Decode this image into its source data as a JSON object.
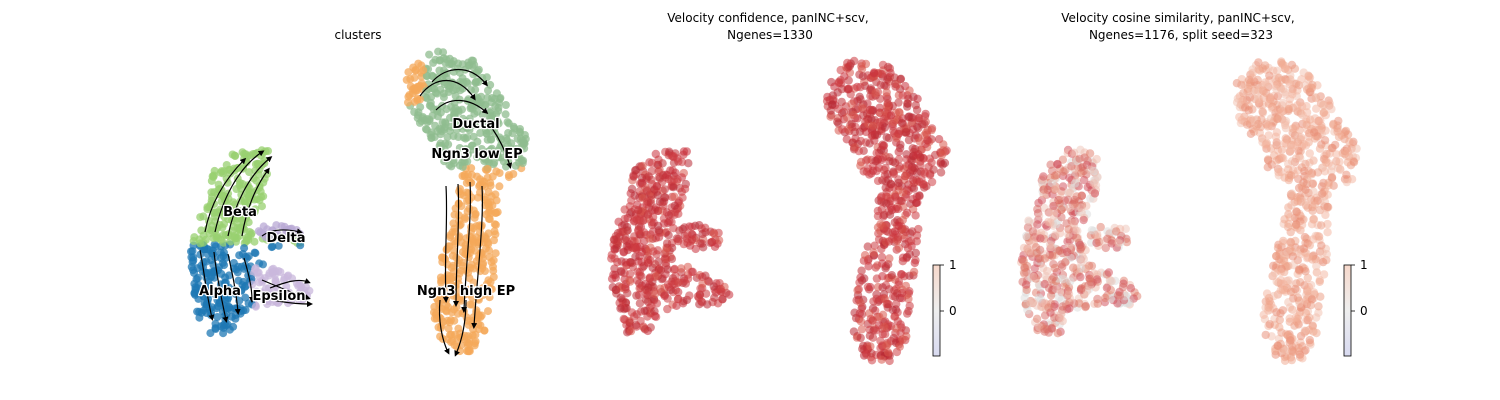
{
  "chart_data": [
    {
      "type": "scatter",
      "title": "clusters",
      "point_kind": "umap-embedding-with-velocity-streamlines",
      "clusters": [
        {
          "name": "Beta",
          "color": "#98d070"
        },
        {
          "name": "Delta",
          "color": "#b8a8d4"
        },
        {
          "name": "Alpha",
          "color": "#1f78b4"
        },
        {
          "name": "Epsilon",
          "color": "#c9b8dc"
        },
        {
          "name": "Ductal",
          "color": "#8fbc8f"
        },
        {
          "name": "Ngn3 low EP",
          "color": "#8fbc8f"
        },
        {
          "name": "Ngn3 high EP",
          "color": "#f4a85a"
        }
      ],
      "axes_visible": false
    },
    {
      "type": "scatter",
      "title_line1": "Velocity confidence, panINC+scv,",
      "title_line2": "Ngenes=1330",
      "colormap": "coolwarm",
      "colorbar": {
        "ticks": [
          "1",
          "0"
        ],
        "range": [
          -1,
          1
        ]
      },
      "axes_visible": false
    },
    {
      "type": "scatter",
      "title_line1": "Velocity cosine similarity, panINC+scv,",
      "title_line2": "Ngenes=1176, split seed=323",
      "colormap": "coolwarm",
      "colorbar": {
        "ticks": [
          "1",
          "0"
        ],
        "range": [
          -1,
          1
        ]
      },
      "axes_visible": false
    }
  ]
}
